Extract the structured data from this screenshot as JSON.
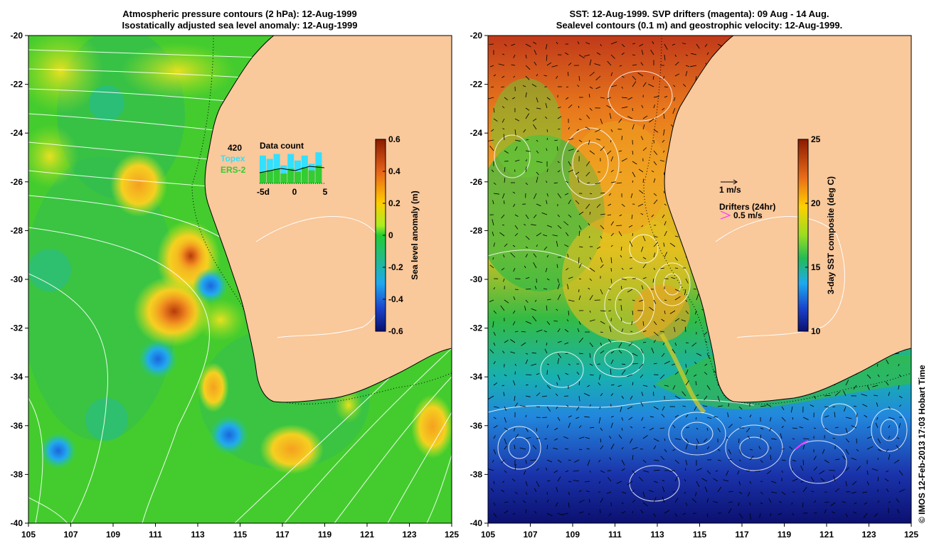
{
  "left_panel": {
    "title_line1": "Atmospheric pressure contours (2 hPa): 12-Aug-1999",
    "title_line2": "Isostatically adjusted sea level anomaly: 12-Aug-1999",
    "data_count": {
      "title": "Data count",
      "total": "420",
      "topex_label": "Topex",
      "ers_label": "ERS-2",
      "x_tick_left": "-5d",
      "x_tick_mid": "0",
      "x_tick_right": "5",
      "topex_color": "#33e0ff",
      "ers_color": "#33cc33"
    },
    "colorbar": {
      "label": "Sea level anomaly (m)",
      "ticks": [
        "0.6",
        "0.4",
        "0.2",
        "0",
        "-0.2",
        "-0.4",
        "-0.6"
      ]
    }
  },
  "right_panel": {
    "title_line1": "SST: 12-Aug-1999. SVP drifters (magenta): 09 Aug - 14 Aug.",
    "title_line2": "Sealevel contours (0.1 m) and geostrophic velocity: 12-Aug-1999.",
    "scale_label": "1 m/s",
    "drifters_title": "Drifters (24hr)",
    "drifters_speed": "0.5 m/s",
    "drifter_color": "#ff33ff",
    "colorbar": {
      "label": "3-day SST composite (deg C)",
      "ticks": [
        "25",
        "20",
        "15",
        "10"
      ]
    }
  },
  "axes": {
    "y_ticks": [
      "-20",
      "-22",
      "-24",
      "-26",
      "-28",
      "-30",
      "-32",
      "-34",
      "-36",
      "-38",
      "-40"
    ],
    "x_ticks": [
      "105",
      "107",
      "109",
      "111",
      "113",
      "115",
      "117",
      "119",
      "121",
      "123",
      "125"
    ]
  },
  "land_color": "#f9c89b",
  "credit": "© IMOS 12-Feb-2013 17:03 Hobart Time"
}
